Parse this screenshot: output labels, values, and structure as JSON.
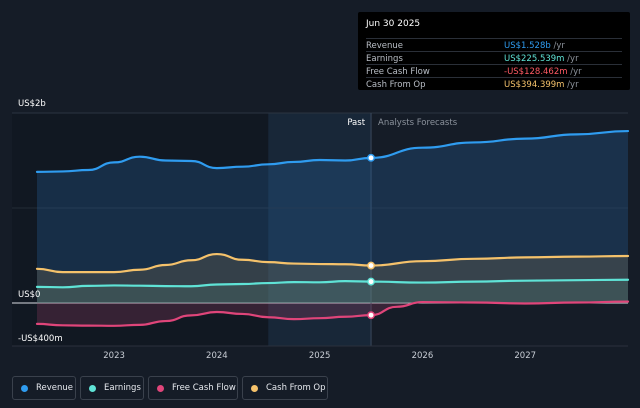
{
  "tooltip": {
    "date": "Jun 30 2025",
    "rows": [
      {
        "label": "Revenue",
        "value": "US$1.528b",
        "unit": " /yr",
        "color": "#2f9cf0"
      },
      {
        "label": "Earnings",
        "value": "US$225.539m",
        "unit": " /yr",
        "color": "#5fe3d6"
      },
      {
        "label": "Free Cash Flow",
        "value": "-US$128.462m",
        "unit": " /yr",
        "color": "#ff5a64"
      },
      {
        "label": "Cash From Op",
        "value": "US$394.399m",
        "unit": " /yr",
        "color": "#f5c26b"
      }
    ]
  },
  "chart_data": {
    "type": "line",
    "title": "",
    "xlabel": "",
    "ylabel": "",
    "y_labels": [
      "US$2b",
      "US$0",
      "-US$400m"
    ],
    "ylim": [
      -400,
      2000
    ],
    "xlim": [
      2022.25,
      2028.0
    ],
    "x_tick_labels": [
      "2023",
      "2024",
      "2025",
      "2026",
      "2027"
    ],
    "x_ticks": [
      2023,
      2024,
      2025,
      2026,
      2027
    ],
    "past_label": "Past",
    "forecast_label": "Analysts Forecasts",
    "divider_x": 2025.5,
    "highlight_range": [
      2024.5,
      2025.5
    ],
    "series": [
      {
        "name": "Revenue",
        "color": "#2f9cf0",
        "area": true,
        "points": [
          [
            2022.25,
            1380
          ],
          [
            2022.5,
            1385
          ],
          [
            2022.75,
            1400
          ],
          [
            2023.0,
            1480
          ],
          [
            2023.25,
            1540
          ],
          [
            2023.5,
            1500
          ],
          [
            2023.75,
            1495
          ],
          [
            2024.0,
            1420
          ],
          [
            2024.25,
            1435
          ],
          [
            2024.5,
            1460
          ],
          [
            2024.75,
            1485
          ],
          [
            2025.0,
            1505
          ],
          [
            2025.25,
            1500
          ],
          [
            2025.5,
            1528
          ],
          [
            2026.0,
            1635
          ],
          [
            2026.5,
            1690
          ],
          [
            2027.0,
            1730
          ],
          [
            2027.5,
            1775
          ],
          [
            2028.0,
            1810
          ]
        ]
      },
      {
        "name": "Earnings",
        "color": "#5fe3d6",
        "area": false,
        "points": [
          [
            2022.25,
            170
          ],
          [
            2022.5,
            165
          ],
          [
            2022.75,
            180
          ],
          [
            2023.0,
            185
          ],
          [
            2023.25,
            182
          ],
          [
            2023.5,
            178
          ],
          [
            2023.75,
            176
          ],
          [
            2024.0,
            195
          ],
          [
            2024.25,
            200
          ],
          [
            2024.5,
            210
          ],
          [
            2024.75,
            220
          ],
          [
            2025.0,
            218
          ],
          [
            2025.25,
            230
          ],
          [
            2025.5,
            225
          ],
          [
            2026.0,
            215
          ],
          [
            2026.5,
            225
          ],
          [
            2027.0,
            235
          ],
          [
            2027.5,
            240
          ],
          [
            2028.0,
            245
          ]
        ]
      },
      {
        "name": "Free Cash Flow",
        "color": "#e0457a",
        "area": false,
        "points": [
          [
            2022.25,
            -220
          ],
          [
            2022.5,
            -235
          ],
          [
            2022.75,
            -238
          ],
          [
            2023.0,
            -240
          ],
          [
            2023.25,
            -230
          ],
          [
            2023.5,
            -190
          ],
          [
            2023.75,
            -130
          ],
          [
            2024.0,
            -95
          ],
          [
            2024.25,
            -115
          ],
          [
            2024.5,
            -150
          ],
          [
            2024.75,
            -170
          ],
          [
            2025.0,
            -160
          ],
          [
            2025.25,
            -145
          ],
          [
            2025.5,
            -128
          ],
          [
            2025.75,
            -40
          ],
          [
            2026.0,
            10
          ],
          [
            2026.5,
            5
          ],
          [
            2027.0,
            -5
          ],
          [
            2027.5,
            5
          ],
          [
            2028.0,
            15
          ]
        ]
      },
      {
        "name": "Cash From Op",
        "color": "#f5c26b",
        "area": true,
        "points": [
          [
            2022.25,
            360
          ],
          [
            2022.5,
            325
          ],
          [
            2022.75,
            325
          ],
          [
            2023.0,
            325
          ],
          [
            2023.25,
            350
          ],
          [
            2023.5,
            400
          ],
          [
            2023.75,
            450
          ],
          [
            2024.0,
            515
          ],
          [
            2024.25,
            455
          ],
          [
            2024.5,
            430
          ],
          [
            2024.75,
            415
          ],
          [
            2025.0,
            410
          ],
          [
            2025.25,
            408
          ],
          [
            2025.5,
            394
          ],
          [
            2026.0,
            440
          ],
          [
            2026.5,
            465
          ],
          [
            2027.0,
            480
          ],
          [
            2027.5,
            488
          ],
          [
            2028.0,
            495
          ]
        ]
      }
    ],
    "marker_x": 2025.5
  },
  "legend": [
    {
      "label": "Revenue",
      "color": "#2f9cf0"
    },
    {
      "label": "Earnings",
      "color": "#5fe3d6"
    },
    {
      "label": "Free Cash Flow",
      "color": "#e0457a"
    },
    {
      "label": "Cash From Op",
      "color": "#f5c26b"
    }
  ]
}
